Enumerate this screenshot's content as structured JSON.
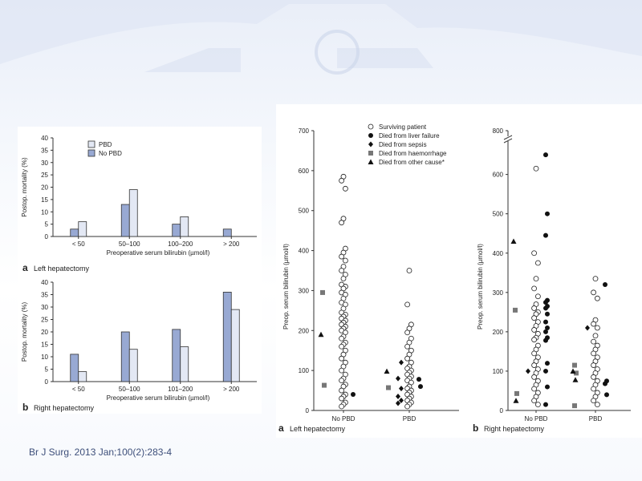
{
  "citation": "Br J Surg. 2013 Jan;100(2):283-4",
  "colors": {
    "pbd_bar": "#e3e8f4",
    "no_pbd_bar": "#98a9d3",
    "bar_stroke": "#333333"
  },
  "chart_data": [
    {
      "type": "bar",
      "panel_letter": "a",
      "panel_title": "Left hepatectomy",
      "xlabel": "Preoperative serum bilirubin (µmol/l)",
      "ylabel": "Postop. mortality (%)",
      "ylim": [
        0,
        40
      ],
      "yticks": [
        0,
        5,
        10,
        15,
        20,
        25,
        30,
        35,
        40
      ],
      "categories": [
        "< 50",
        "50–100",
        "100–200",
        "> 200"
      ],
      "legend": {
        "position": "top-left",
        "entries": [
          "PBD",
          "No PBD"
        ]
      },
      "series": [
        {
          "name": "No PBD",
          "values": [
            3,
            13,
            5,
            3
          ]
        },
        {
          "name": "PBD",
          "values": [
            6,
            19,
            8,
            0
          ]
        }
      ]
    },
    {
      "type": "bar",
      "panel_letter": "b",
      "panel_title": "Right hepatectomy",
      "xlabel": "Preoperative serum bilirubin (µmol/l)",
      "ylabel": "Postop. mortality (%)",
      "ylim": [
        0,
        40
      ],
      "yticks": [
        0,
        5,
        10,
        15,
        20,
        25,
        30,
        35,
        40
      ],
      "categories": [
        "< 50",
        "50–100",
        "101–200",
        "> 200"
      ],
      "series": [
        {
          "name": "No PBD",
          "values": [
            11,
            20,
            21,
            36
          ]
        },
        {
          "name": "PBD",
          "values": [
            4,
            13,
            14,
            29
          ]
        }
      ]
    },
    {
      "type": "scatter",
      "panel_letter": "a",
      "panel_title": "Left hepatectomy",
      "ylabel": "Preop. serum bilirubin (µmol/l)",
      "ylim": [
        0,
        700
      ],
      "yticks": [
        0,
        100,
        200,
        300,
        400,
        500,
        600,
        700
      ],
      "categories": [
        "No PBD",
        "PBD"
      ],
      "legend": {
        "position": "top-right",
        "entries": [
          {
            "label": "Surviving patient",
            "marker": "open-circle"
          },
          {
            "label": "Died from liver failure",
            "marker": "filled-circle"
          },
          {
            "label": "Died from sepsis",
            "marker": "diamond"
          },
          {
            "label": "Died from haemorrhage",
            "marker": "square"
          },
          {
            "label": "Died from other cause*",
            "marker": "triangle"
          }
        ]
      },
      "groups": [
        {
          "category": "No PBD",
          "surviving": [
            585,
            575,
            555,
            480,
            470,
            405,
            395,
            385,
            375,
            360,
            350,
            340,
            330,
            315,
            310,
            305,
            295,
            290,
            280,
            270,
            265,
            255,
            245,
            240,
            235,
            230,
            225,
            220,
            215,
            210,
            205,
            200,
            195,
            185,
            180,
            170,
            165,
            160,
            150,
            140,
            130,
            120,
            110,
            100,
            90,
            80,
            75,
            65,
            60,
            50,
            40,
            35,
            30,
            20,
            15,
            10
          ],
          "liver_failure": [
            40
          ],
          "sepsis": [],
          "haemorrhage": [
            295,
            63
          ],
          "other": [
            190
          ]
        },
        {
          "category": "PBD",
          "surviving": [
            350,
            265,
            215,
            205,
            195,
            180,
            170,
            160,
            150,
            140,
            130,
            120,
            110,
            105,
            100,
            95,
            90,
            85,
            80,
            75,
            70,
            60,
            55,
            50,
            45,
            40,
            35,
            30,
            25,
            20,
            15,
            10
          ],
          "liver_failure": [
            78,
            60
          ],
          "sepsis": [
            120,
            80,
            55,
            35,
            25,
            18
          ],
          "haemorrhage": [
            57
          ],
          "other": [
            98
          ]
        }
      ]
    },
    {
      "type": "scatter",
      "panel_letter": "b",
      "panel_title": "Right hepatectomy",
      "ylabel": "Preop. serum bilirubin (µmol/l)",
      "ylim": [
        0,
        800
      ],
      "axis_break": [
        650,
        750
      ],
      "yticks": [
        0,
        100,
        200,
        300,
        400,
        500,
        600,
        800
      ],
      "categories": [
        "No PBD",
        "PBD"
      ],
      "groups": [
        {
          "category": "No PBD",
          "surviving": [
            615,
            400,
            375,
            335,
            310,
            290,
            270,
            260,
            250,
            245,
            235,
            225,
            215,
            205,
            195,
            185,
            180,
            165,
            155,
            145,
            135,
            125,
            115,
            105,
            95,
            85,
            75,
            65,
            55,
            45,
            35,
            25,
            15
          ],
          "liver_failure": [
            650,
            500,
            445,
            280,
            275,
            265,
            260,
            245,
            225,
            210,
            200,
            185,
            178,
            120,
            100,
            60,
            15
          ],
          "sepsis": [
            100
          ],
          "haemorrhage": [
            255,
            43
          ],
          "other": [
            430,
            25
          ]
        },
        {
          "category": "PBD",
          "surviving": [
            335,
            300,
            285,
            230,
            220,
            210,
            190,
            175,
            165,
            155,
            145,
            135,
            125,
            115,
            105,
            95,
            85,
            75,
            65,
            55,
            45,
            35,
            25,
            15
          ],
          "liver_failure": [
            320,
            75,
            68,
            40
          ],
          "sepsis": [
            210
          ],
          "haemorrhage": [
            115,
            95,
            12
          ],
          "other": [
            100,
            78
          ]
        }
      ]
    }
  ]
}
